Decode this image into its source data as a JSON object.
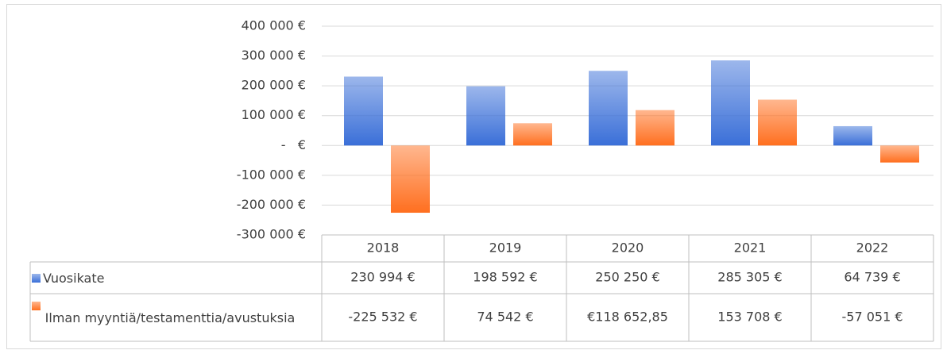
{
  "chart_data": {
    "type": "bar",
    "categories": [
      "2018",
      "2019",
      "2020",
      "2021",
      "2022"
    ],
    "series": [
      {
        "name": "Vuosikate",
        "color": "#3a6fd8",
        "values": [
          230994,
          198592,
          250250,
          285305,
          64739
        ],
        "value_labels": [
          "230 994 €",
          "198 592 €",
          "250 250 €",
          "285 305 €",
          "64 739 €"
        ]
      },
      {
        "name": "Ilman myyntiä/testamenttia/avustuksia",
        "color": "#ff6f1f",
        "values": [
          -225532,
          74542,
          118652.85,
          153708,
          -57051
        ],
        "value_labels": [
          "-225 532 €",
          "74 542 €",
          "€118 652,85",
          "153 708 €",
          "-57 051 €"
        ]
      }
    ],
    "ylim": [
      -300000,
      400000
    ],
    "yticks": [
      {
        "value": 400000,
        "label": "400 000 €"
      },
      {
        "value": 300000,
        "label": "300 000 €"
      },
      {
        "value": 200000,
        "label": "200 000 €"
      },
      {
        "value": 100000,
        "label": "100 000 €"
      },
      {
        "value": 0,
        "label": "-   €"
      },
      {
        "value": -100000,
        "label": "-100 000 €"
      },
      {
        "value": -200000,
        "label": "-200 000 €"
      },
      {
        "value": -300000,
        "label": "-300 000 €"
      }
    ],
    "grid": true,
    "data_table": true
  }
}
